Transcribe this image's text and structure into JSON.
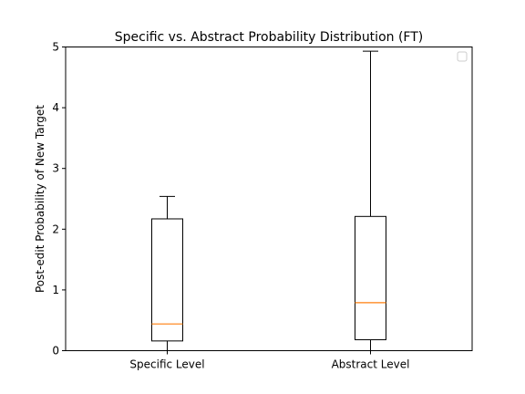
{
  "chart_data": {
    "type": "box",
    "title": "Specific vs. Abstract Probability Distribution (FT)",
    "xlabel": "",
    "ylabel": "Post-edit Probability of New Target",
    "ylim": [
      0,
      5
    ],
    "yticks": [
      "0",
      "1",
      "2",
      "3",
      "4",
      "5"
    ],
    "categories": [
      "Specific Level",
      "Abstract Level"
    ],
    "boxes": [
      {
        "category": "Specific Level",
        "whisker_low": 0.0,
        "q1": 0.16,
        "median": 0.44,
        "q3": 2.17,
        "whisker_high": 2.54
      },
      {
        "category": "Abstract Level",
        "whisker_low": 0.0,
        "q1": 0.18,
        "median": 0.79,
        "q3": 2.21,
        "whisker_high": 4.93
      }
    ],
    "legend": {
      "placement": "upper-right",
      "entries": []
    },
    "grid": false,
    "colors": {
      "box": "#000000",
      "median": "#ff7f0e",
      "axes": "#000000"
    }
  }
}
